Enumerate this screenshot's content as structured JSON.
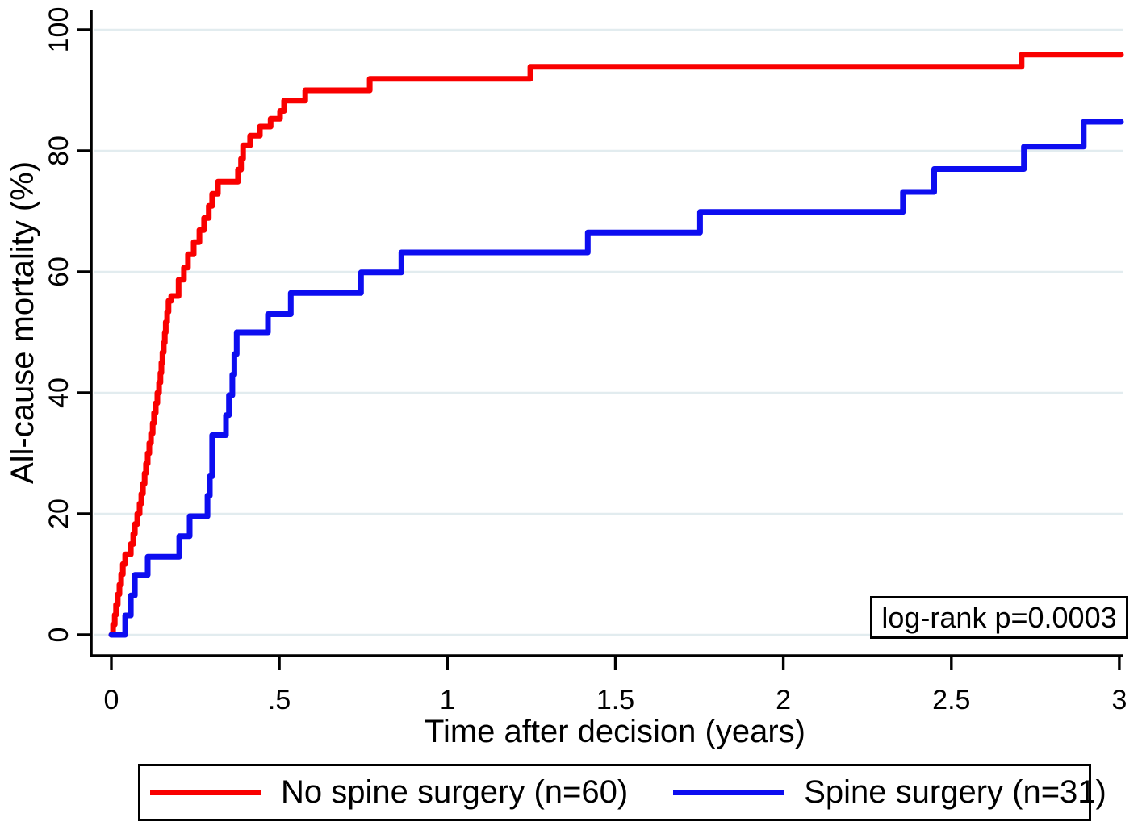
{
  "chart_data": {
    "type": "line",
    "subtype": "kaplan_meier_step",
    "title": "",
    "xlabel": "Time after decision (years)",
    "ylabel": "All-cause mortality (%)",
    "xlim": [
      0,
      3
    ],
    "ylim": [
      0,
      100
    ],
    "xticks": [
      "0",
      ".5",
      "1",
      "1.5",
      "2",
      "2.5",
      "3"
    ],
    "xtick_values": [
      0,
      0.5,
      1,
      1.5,
      2,
      2.5,
      3
    ],
    "yticks": [
      "0",
      "20",
      "40",
      "60",
      "80",
      "100"
    ],
    "ytick_values": [
      0,
      20,
      40,
      60,
      80,
      100
    ],
    "grid": "horizontal-only",
    "grid_color": "#e2ecef",
    "axis_color": "#000000",
    "annotation": {
      "text": "log-rank p=0.0003",
      "position": "bottom-right"
    },
    "legend": {
      "position": "bottom",
      "border": true
    },
    "series": [
      {
        "name": "No spine surgery (n=60)",
        "color": "#f90000",
        "style": "step-after",
        "points": [
          [
            0.0,
            0.0
          ],
          [
            0.005,
            1.7
          ],
          [
            0.01,
            3.3
          ],
          [
            0.014,
            5.0
          ],
          [
            0.019,
            6.7
          ],
          [
            0.024,
            8.3
          ],
          [
            0.029,
            10.0
          ],
          [
            0.034,
            11.7
          ],
          [
            0.041,
            13.3
          ],
          [
            0.058,
            15.0
          ],
          [
            0.065,
            16.7
          ],
          [
            0.07,
            18.3
          ],
          [
            0.077,
            20.0
          ],
          [
            0.084,
            21.7
          ],
          [
            0.089,
            23.3
          ],
          [
            0.094,
            25.0
          ],
          [
            0.099,
            26.7
          ],
          [
            0.103,
            28.3
          ],
          [
            0.108,
            30.0
          ],
          [
            0.113,
            31.7
          ],
          [
            0.118,
            33.3
          ],
          [
            0.123,
            35.0
          ],
          [
            0.127,
            36.7
          ],
          [
            0.132,
            38.3
          ],
          [
            0.137,
            40.0
          ],
          [
            0.142,
            41.7
          ],
          [
            0.146,
            43.3
          ],
          [
            0.149,
            45.0
          ],
          [
            0.152,
            46.7
          ],
          [
            0.156,
            48.3
          ],
          [
            0.159,
            50.0
          ],
          [
            0.162,
            51.7
          ],
          [
            0.166,
            53.4
          ],
          [
            0.17,
            55.2
          ],
          [
            0.178,
            56.0
          ],
          [
            0.2,
            58.7
          ],
          [
            0.216,
            60.7
          ],
          [
            0.228,
            62.9
          ],
          [
            0.245,
            64.9
          ],
          [
            0.262,
            66.9
          ],
          [
            0.276,
            68.9
          ],
          [
            0.29,
            70.9
          ],
          [
            0.3,
            72.9
          ],
          [
            0.317,
            74.9
          ],
          [
            0.377,
            76.9
          ],
          [
            0.386,
            78.7
          ],
          [
            0.392,
            80.9
          ],
          [
            0.413,
            82.5
          ],
          [
            0.442,
            84.0
          ],
          [
            0.474,
            85.3
          ],
          [
            0.502,
            86.6
          ],
          [
            0.514,
            88.3
          ],
          [
            0.577,
            90.0
          ],
          [
            0.769,
            91.9
          ],
          [
            1.247,
            93.9
          ],
          [
            2.709,
            95.9
          ]
        ]
      },
      {
        "name": "Spine surgery (n=31)",
        "color": "#0d0df0",
        "style": "step-after",
        "points": [
          [
            0.0,
            0.0
          ],
          [
            0.041,
            3.2
          ],
          [
            0.058,
            6.5
          ],
          [
            0.07,
            9.9
          ],
          [
            0.108,
            12.9
          ],
          [
            0.202,
            16.3
          ],
          [
            0.233,
            19.6
          ],
          [
            0.286,
            23.0
          ],
          [
            0.293,
            26.2
          ],
          [
            0.3,
            33.0
          ],
          [
            0.341,
            36.3
          ],
          [
            0.35,
            39.6
          ],
          [
            0.36,
            43.0
          ],
          [
            0.366,
            46.4
          ],
          [
            0.373,
            50.0
          ],
          [
            0.466,
            53.0
          ],
          [
            0.534,
            56.5
          ],
          [
            0.743,
            59.9
          ],
          [
            0.863,
            63.2
          ],
          [
            1.418,
            66.5
          ],
          [
            1.752,
            69.9
          ],
          [
            2.356,
            73.2
          ],
          [
            2.449,
            77.0
          ],
          [
            2.716,
            80.7
          ],
          [
            2.894,
            84.8
          ]
        ]
      }
    ]
  }
}
